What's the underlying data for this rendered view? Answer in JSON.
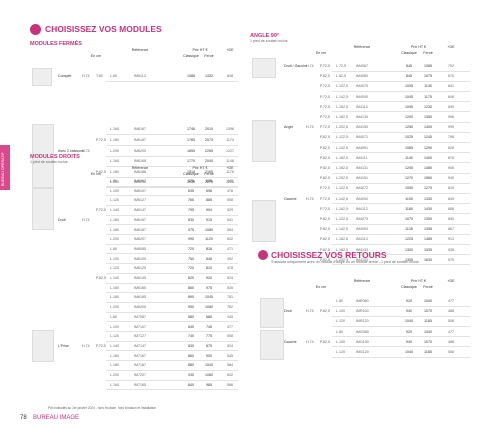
{
  "header": {
    "title": "CHOISISSEZ VOS MODULES"
  },
  "side_tab": "BUREAU OPÉRATIF",
  "tables": [
    {
      "title": "MODULES FERMÉS",
      "columns": {
        "dims": "En cm",
        "ref": "Référence",
        "price": "Prix HT €",
        "extra": "+DE",
        "classique": "Classique",
        "feroe": "Feroé"
      },
      "rows": [
        {
          "label": "Complet",
          "h": "H.74",
          "p": "T.80",
          "l": "L.80",
          "ref": "IM6113",
          "prices": [
            "1086",
            "1332",
            "848"
          ]
        },
        {
          "l": "L.160",
          "ref": "IM6167",
          "prices": [
            "1746",
            "2010",
            "1396"
          ]
        },
        {
          "p": "P.72,5",
          "l": "L.180",
          "ref": "IM6187",
          "prices": [
            "1765",
            "2070",
            "1174"
          ]
        },
        {
          "label": "Avec 2 caissons",
          "h": "H.74",
          "l": "L.200",
          "ref": "IM6200",
          "prices": [
            "1855",
            "2265",
            "1227"
          ]
        },
        {
          "l": "L.160",
          "ref": "IM6168",
          "prices": [
            "1770",
            "2040",
            "1148"
          ]
        },
        {
          "p": "P.82,5",
          "l": "L.180",
          "ref": "IM6188",
          "prices": [
            "1818",
            "2165",
            "1176"
          ]
        },
        {
          "l": "L.200",
          "ref": "IM6208",
          "prices": [
            "1959",
            "2275",
            "1226"
          ]
        }
      ]
    },
    {
      "title": "ANGLE 90°",
      "subtitle": "1 pied de soutien inclus",
      "columns": {
        "dims": "En cm",
        "ref": "Référence",
        "price": "Prix HT €",
        "extra": "+DE",
        "classique": "Classique",
        "feroe": "Feroé"
      },
      "rows": [
        {
          "label": "Droit / Gauche",
          "h": "H.74",
          "p": "P.72,5",
          "l": "L.72,5",
          "ref": "IM4067",
          "prices": [
            "845",
            "1085",
            "702"
          ]
        },
        {
          "p": "P.82,5",
          "l": "L.82,5",
          "ref": "IM4080",
          "prices": [
            "845",
            "1075",
            "676"
          ]
        },
        {
          "p": "P.72,5",
          "l": "L.122,5",
          "ref": "IM4070",
          "prices": [
            "1005",
            "1140",
            "841"
          ]
        },
        {
          "p": "P.72,5",
          "l": "L.142,5",
          "ref": "IM4090",
          "prices": [
            "1045",
            "1175",
            "846"
          ]
        },
        {
          "p": "P.72,5",
          "l": "L.162,5",
          "ref": "IM4110",
          "prices": [
            "1095",
            "1230",
            "849"
          ]
        },
        {
          "p": "P.72,5",
          "l": "L.182,5",
          "ref": "IM4130",
          "prices": [
            "1200",
            "1350",
            "996"
          ]
        },
        {
          "label": "Angle",
          "h": "H.74",
          "p": "P.72,5",
          "l": "L.202,5",
          "ref": "IM4150",
          "prices": [
            "1250",
            "1400",
            "999"
          ]
        },
        {
          "p": "P.82,5",
          "l": "L.122,5",
          "ref": "IM4071",
          "prices": [
            "1025",
            "1245",
            "798"
          ]
        },
        {
          "p": "P.82,5",
          "l": "L.142,5",
          "ref": "IM4091",
          "prices": [
            "1085",
            "1290",
            "828"
          ]
        },
        {
          "p": "P.82,5",
          "l": "L.162,5",
          "ref": "IM4111",
          "prices": [
            "1140",
            "1400",
            "876"
          ]
        },
        {
          "p": "P.82,5",
          "l": "L.182,5",
          "ref": "IM4131",
          "prices": [
            "1205",
            "1480",
            "906"
          ]
        },
        {
          "p": "P.82,5",
          "l": "L.202,5",
          "ref": "IM4151",
          "prices": [
            "1270",
            "1560",
            "940"
          ]
        },
        {
          "p": "P.72,5",
          "l": "L.122,5",
          "ref": "IM4072",
          "prices": [
            "1050",
            "1270",
            "819"
          ]
        },
        {
          "label": "Gauche",
          "h": "H.74",
          "p": "P.72,5",
          "l": "L.142,5",
          "ref": "IM4092",
          "prices": [
            "1100",
            "1330",
            "849"
          ]
        },
        {
          "p": "P.72,5",
          "l": "L.162,5",
          "ref": "IM4112",
          "prices": [
            "1180",
            "1430",
            "888"
          ]
        },
        {
          "p": "P.82,5",
          "l": "L.122,5",
          "ref": "IM4073",
          "prices": [
            "1070",
            "1300",
            "830"
          ]
        },
        {
          "p": "P.82,5",
          "l": "L.142,5",
          "ref": "IM4093",
          "prices": [
            "1135",
            "1395",
            "867"
          ]
        },
        {
          "p": "P.82,5",
          "l": "L.162,5",
          "ref": "IM4113",
          "prices": [
            "1225",
            "1485",
            "913"
          ]
        },
        {
          "p": "P.82,5",
          "l": "L.182,5",
          "ref": "IM4133",
          "prices": [
            "1300",
            "1535",
            "938"
          ]
        },
        {
          "p": "P.82,5",
          "l": "L.202,5",
          "ref": "IM4153",
          "prices": [
            "1355",
            "1630",
            "975"
          ]
        }
      ]
    },
    {
      "title": "MODULES DROITS",
      "subtitle": "1 pied de soutien inclus",
      "columns": {
        "dims": "En cm",
        "ref": "Référence",
        "price": "Prix HT €",
        "extra": "+DE",
        "classique": "Classique",
        "feroe": "Feroé"
      },
      "rows": [
        {
          "l": "L.80",
          "ref": "IM6067",
          "prices": [
            "575",
            "635",
            "442"
          ]
        },
        {
          "l": "L.100",
          "ref": "IM6107",
          "prices": [
            "635",
            "696",
            "478"
          ]
        },
        {
          "l": "L.120",
          "ref": "IM6127",
          "prices": [
            "765",
            "885",
            "508"
          ]
        },
        {
          "p": "P.72,5",
          "l": "L.140",
          "ref": "IM6147",
          "prices": [
            "795",
            "904",
            "529"
          ]
        },
        {
          "label": "Droit",
          "h": "H.74",
          "l": "L.160",
          "ref": "IM6167",
          "prices": [
            "830",
            "915",
            "541"
          ]
        },
        {
          "l": "L.180",
          "ref": "IM6187",
          "prices": [
            "975",
            "1080",
            "584"
          ]
        },
        {
          "l": "L.200",
          "ref": "IM6207",
          "prices": [
            "990",
            "1120",
            "602"
          ]
        },
        {
          "l": "L.80",
          "ref": "IM6085",
          "prices": [
            "720",
            "818",
            "471"
          ]
        },
        {
          "l": "L.100",
          "ref": "IM6105",
          "prices": [
            "750",
            "846",
            "492"
          ]
        },
        {
          "l": "L.120",
          "ref": "IM6125",
          "prices": [
            "720",
            "810",
            "478"
          ]
        },
        {
          "p": "P.82,5",
          "l": "L.140",
          "ref": "IM6145",
          "prices": [
            "820",
            "920",
            "524"
          ]
        },
        {
          "l": "L.160",
          "ref": "IM6165",
          "prices": [
            "860",
            "975",
            "545"
          ]
        },
        {
          "l": "L.180",
          "ref": "IM6185",
          "prices": [
            "890",
            "1045",
            "751"
          ]
        },
        {
          "l": "L.200",
          "ref": "IM6205",
          "prices": [
            "950",
            "1080",
            "762"
          ]
        },
        {
          "l": "L.80",
          "ref": "IM7087",
          "prices": [
            "580",
            "686",
            "445"
          ]
        },
        {
          "l": "L.100",
          "ref": "IM7107",
          "prices": [
            "640",
            "745",
            "477"
          ]
        },
        {
          "l": "L.120",
          "ref": "IM7127",
          "prices": [
            "740",
            "775",
            "508"
          ]
        },
        {
          "label": "L'Prise",
          "h": "H.74",
          "p": "P.72,5",
          "l": "L.140",
          "ref": "IM7147",
          "prices": [
            "830",
            "875",
            "524"
          ]
        },
        {
          "l": "L.160",
          "ref": "IM7167",
          "prices": [
            "860",
            "900",
            "545"
          ]
        },
        {
          "l": "L.180",
          "ref": "IM7187",
          "prices": [
            "880",
            "1040",
            "584"
          ]
        },
        {
          "l": "L.200",
          "ref": "IM7207",
          "prices": [
            "930",
            "1080",
            "602"
          ]
        },
        {
          "l": "L.160",
          "ref": "IM7165",
          "prices": [
            "840",
            "985",
            "566"
          ]
        }
      ]
    },
    {
      "title": "CHOISISSEZ VOS RETOURS",
      "subtitle": "S'associe uniquement avec un module d'angle ou un module terme - 1 pied de soutien inclus",
      "columns": {
        "dims": "En cm",
        "ref": "Référence",
        "price": "Prix HT €",
        "extra": "+DE",
        "classique": "Classique",
        "feroe": "Feroé"
      },
      "rows": [
        {
          "l": "L.80",
          "ref": "IMR080",
          "prices": [
            "920",
            "1040",
            "477"
          ]
        },
        {
          "label": "Droit",
          "h": "H.74",
          "p": "P.82,5",
          "l": "L.100",
          "ref": "IMR100",
          "prices": [
            "940",
            "1070",
            "488"
          ]
        },
        {
          "l": "L.120",
          "ref": "IMR120",
          "prices": [
            "1040",
            "1185",
            "508"
          ]
        },
        {
          "l": "L.80",
          "ref": "IMG080",
          "prices": [
            "920",
            "1040",
            "477"
          ]
        },
        {
          "label": "Gauche",
          "h": "H.74",
          "p": "P.82,5",
          "l": "L.100",
          "ref": "IMG100",
          "prices": [
            "940",
            "1070",
            "488"
          ]
        },
        {
          "l": "L.120",
          "ref": "IMG120",
          "prices": [
            "1040",
            "1185",
            "508"
          ]
        }
      ]
    }
  ],
  "footnote": "Prix indicatifs au 1er janvier 2024 - hors écotaxe, hors livraison et installation",
  "footer": {
    "page": "78",
    "brand": "BUREAU IMAGE"
  }
}
